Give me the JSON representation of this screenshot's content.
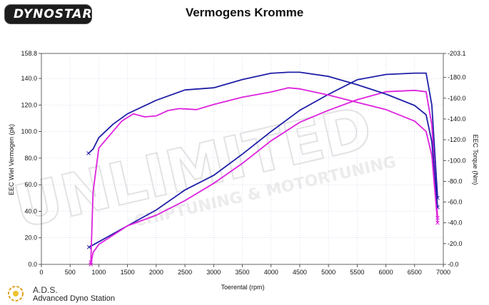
{
  "header": {
    "logo_text": "DYNOSTAR",
    "title": "Vermogens Kromme"
  },
  "footer": {
    "brand": "A.D.S.",
    "brand_sub": "Advanced Dyno Station"
  },
  "watermark": {
    "line1": "UNLIMITED",
    "line2": "CHIPTUNING & MOTORTUNING"
  },
  "chart_data": {
    "type": "line",
    "title": "Vermogens Kromme",
    "xlabel": "Toerental (rpm)",
    "ylabel": "EEC Wiel Vermogen (pk)",
    "y2label": "EEC Torque (Nm)",
    "xlim": [
      0,
      7000
    ],
    "ylim": [
      0,
      158.8
    ],
    "y2lim": [
      0,
      -203.1
    ],
    "x_ticks": [
      "0",
      "500",
      "1000",
      "1500",
      "2000",
      "2500",
      "3000",
      "3500",
      "4000",
      "4500",
      "5000",
      "5500",
      "6000",
      "6500",
      "7000"
    ],
    "y_ticks": [
      "0.0",
      "20.0",
      "40.0",
      "60.0",
      "80.0",
      "100.0",
      "120.0",
      "140.0",
      "158.8"
    ],
    "y2_ticks": [
      "-0.0",
      "-20.0",
      "-40.0",
      "-60.0",
      "-80.0",
      "-100.0",
      "-120.0",
      "-140.0",
      "-160.0",
      "-180.0",
      "-203.1"
    ],
    "grid": true,
    "series": [
      {
        "color": "#1f1fa8",
        "axis": "left",
        "points": [
          [
            830,
            13
          ],
          [
            1000,
            17
          ],
          [
            1500,
            29
          ],
          [
            2000,
            41
          ],
          [
            2500,
            56
          ],
          [
            3000,
            67
          ],
          [
            3500,
            83
          ],
          [
            4000,
            100
          ],
          [
            4500,
            116
          ],
          [
            5000,
            128
          ],
          [
            5500,
            139
          ],
          [
            6000,
            143
          ],
          [
            6500,
            144
          ],
          [
            6700,
            144
          ],
          [
            6800,
            120
          ],
          [
            6900,
            50
          ]
        ]
      },
      {
        "color": "#dd22dd",
        "axis": "left",
        "points": [
          [
            860,
            0
          ],
          [
            900,
            9
          ],
          [
            1000,
            15
          ],
          [
            1500,
            29
          ],
          [
            2000,
            37
          ],
          [
            2500,
            48
          ],
          [
            3000,
            61
          ],
          [
            3500,
            76
          ],
          [
            4000,
            93
          ],
          [
            4500,
            107
          ],
          [
            5000,
            116
          ],
          [
            5500,
            124
          ],
          [
            6000,
            130
          ],
          [
            6500,
            131
          ],
          [
            6700,
            130
          ],
          [
            6800,
            105
          ],
          [
            6900,
            35
          ]
        ]
      },
      {
        "color": "#1f1fa8",
        "axis": "right",
        "points": [
          [
            820,
            -107
          ],
          [
            900,
            -111
          ],
          [
            1000,
            -122
          ],
          [
            1250,
            -135
          ],
          [
            1500,
            -145
          ],
          [
            2000,
            -158
          ],
          [
            2500,
            -168
          ],
          [
            3000,
            -170
          ],
          [
            3500,
            -178
          ],
          [
            4000,
            -184
          ],
          [
            4300,
            -185
          ],
          [
            4500,
            -185
          ],
          [
            5000,
            -181
          ],
          [
            5500,
            -173
          ],
          [
            6000,
            -164
          ],
          [
            6500,
            -153
          ],
          [
            6700,
            -144
          ],
          [
            6800,
            -118
          ],
          [
            6900,
            -55
          ]
        ]
      },
      {
        "color": "#dd22dd",
        "axis": "right",
        "points": [
          [
            860,
            -2
          ],
          [
            900,
            -70
          ],
          [
            1000,
            -112
          ],
          [
            1200,
            -125
          ],
          [
            1400,
            -138
          ],
          [
            1600,
            -145
          ],
          [
            1800,
            -142
          ],
          [
            2000,
            -143
          ],
          [
            2200,
            -148
          ],
          [
            2400,
            -150
          ],
          [
            2700,
            -149
          ],
          [
            3000,
            -154
          ],
          [
            3500,
            -161
          ],
          [
            4000,
            -166
          ],
          [
            4300,
            -170
          ],
          [
            4500,
            -169
          ],
          [
            5000,
            -163
          ],
          [
            5500,
            -156
          ],
          [
            6000,
            -149
          ],
          [
            6500,
            -138
          ],
          [
            6700,
            -128
          ],
          [
            6800,
            -105
          ],
          [
            6900,
            -40
          ]
        ]
      }
    ]
  }
}
